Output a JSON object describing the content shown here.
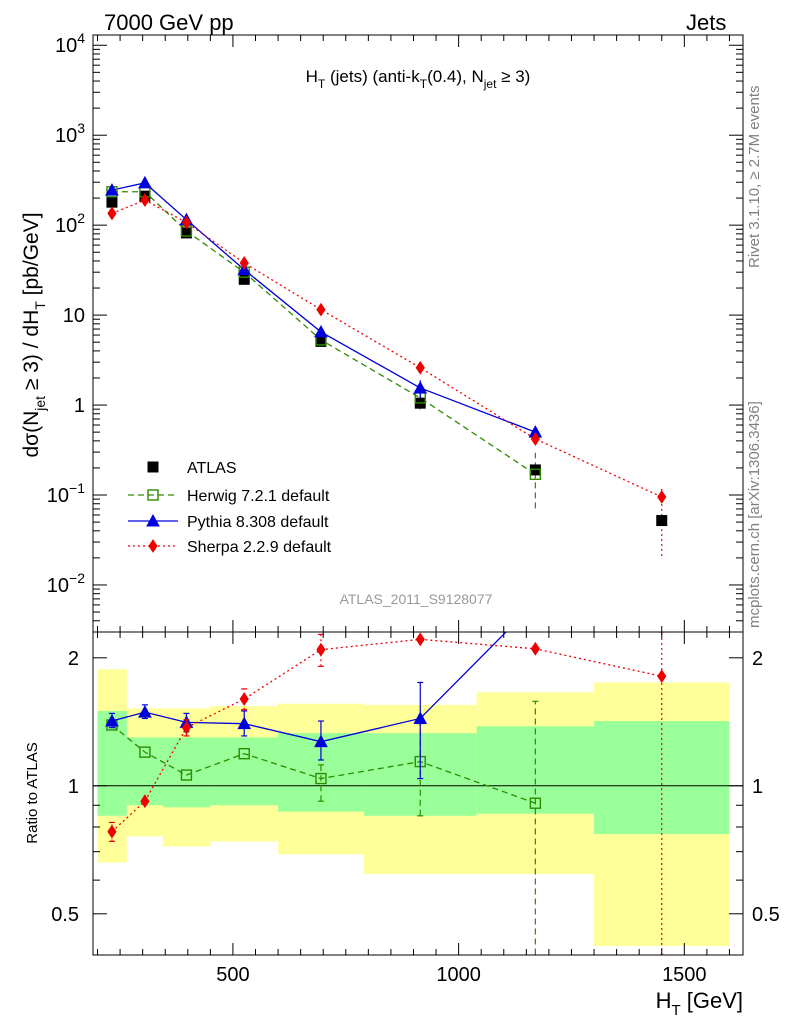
{
  "header": {
    "left": "7000 GeV pp",
    "right": "Jets"
  },
  "side_labels": {
    "rivet": "Rivet 3.1.10, ≥ 2.7M events",
    "mcplots": "mcplots.cern.ch [arXiv:1306.3436]"
  },
  "chart_data": {
    "type": "line",
    "title": "H_T (jets) (anti-k_T(0.4), N_jet ≥ 3)",
    "watermark": "ATLAS_2011_S9128077",
    "xlabel": "H_T [GeV]",
    "ylabel": "dσ(N_jet ≥ 3) / dH_T [pb/GeV]",
    "ratio_ylabel": "Ratio to ATLAS",
    "xlim": [
      190,
      1630
    ],
    "ylim": [
      0.003,
      13000
    ],
    "ylog": true,
    "ratio_ylim": [
      0.4,
      2.3
    ],
    "ratio_ylog": true,
    "x_ticks": [
      "500",
      "1000",
      "1500"
    ],
    "x_tick_values": [
      500,
      1000,
      1500
    ],
    "y_ticks": [
      {
        "v": 10000,
        "base": "10",
        "exp": "4"
      },
      {
        "v": 1000,
        "base": "10",
        "exp": "3"
      },
      {
        "v": 100,
        "base": "10",
        "exp": "2"
      },
      {
        "v": 10,
        "base": "10",
        "exp": ""
      },
      {
        "v": 1,
        "base": "1",
        "exp": ""
      },
      {
        "v": 0.1,
        "base": "10",
        "exp": "−1"
      },
      {
        "v": 0.01,
        "base": "10",
        "exp": "−2"
      }
    ],
    "ratio_ticks": [
      {
        "v": 2,
        "label": "2"
      },
      {
        "v": 1,
        "label": "1"
      },
      {
        "v": 0.5,
        "label": "0.5"
      }
    ],
    "legend_position": "lower-left",
    "bins": [
      200,
      265,
      345,
      450,
      600,
      790,
      1040,
      1300,
      1600
    ],
    "data": {
      "name": "ATLAS",
      "x": [
        232,
        305,
        397,
        525,
        695,
        915,
        1170,
        1450
      ],
      "y": [
        180,
        210,
        82,
        25,
        5.1,
        1.05,
        0.19,
        0.052
      ],
      "band_stat_low": [
        0.85,
        0.9,
        0.89,
        0.9,
        0.87,
        0.85,
        0.86,
        0.77
      ],
      "band_stat_high": [
        1.5,
        1.3,
        1.3,
        1.3,
        1.33,
        1.33,
        1.38,
        1.42
      ],
      "band_tot_low": [
        0.66,
        0.76,
        0.72,
        0.74,
        0.69,
        0.62,
        0.62,
        0.42
      ],
      "band_tot_high": [
        1.88,
        1.52,
        1.52,
        1.54,
        1.56,
        1.55,
        1.66,
        1.75
      ]
    },
    "series": [
      {
        "name": "Herwig 7.2.1 default",
        "color": "#2e8b00",
        "marker": "open-square",
        "dash": "6,4",
        "x": [
          232,
          305,
          397,
          525,
          695,
          915,
          1170
        ],
        "y": [
          235,
          235,
          86,
          30,
          5.3,
          1.2,
          0.17
        ],
        "ratio": [
          1.39,
          1.2,
          1.06,
          1.19,
          1.04,
          1.14,
          0.91
        ],
        "err_lo": [
          null,
          null,
          null,
          null,
          0.92,
          0.85,
          0.38
        ],
        "err_hi": [
          null,
          null,
          null,
          null,
          1.12,
          1.4,
          1.58
        ]
      },
      {
        "name": "Pythia 8.308 default",
        "color": "#0000dd",
        "marker": "triangle",
        "dash": "",
        "x": [
          232,
          305,
          397,
          525,
          695,
          915,
          1170
        ],
        "y": [
          245,
          295,
          115,
          32,
          6.5,
          1.55,
          0.5
        ],
        "ratio": [
          1.42,
          1.49,
          1.41,
          1.4,
          1.27,
          1.44,
          2.7
        ],
        "err_lo": [
          1.37,
          1.44,
          1.34,
          1.31,
          1.15,
          1.04,
          null
        ],
        "err_hi": [
          1.48,
          1.55,
          1.48,
          1.5,
          1.42,
          1.75,
          null
        ]
      },
      {
        "name": "Sherpa 2.2.9 default",
        "color": "#ee0000",
        "marker": "diamond",
        "dash": "2,3",
        "x": [
          232,
          305,
          397,
          525,
          695,
          915,
          1170,
          1450
        ],
        "y": [
          135,
          190,
          107,
          38,
          11.5,
          2.6,
          0.42,
          0.095
        ],
        "ratio": [
          0.78,
          0.92,
          1.37,
          1.6,
          2.09,
          2.21,
          2.1,
          1.81
        ],
        "err_lo": [
          0.74,
          null,
          1.31,
          1.51,
          1.91,
          null,
          null,
          0.4
        ],
        "err_hi": [
          0.82,
          null,
          1.43,
          1.69,
          2.27,
          null,
          null,
          2.3
        ]
      }
    ]
  }
}
